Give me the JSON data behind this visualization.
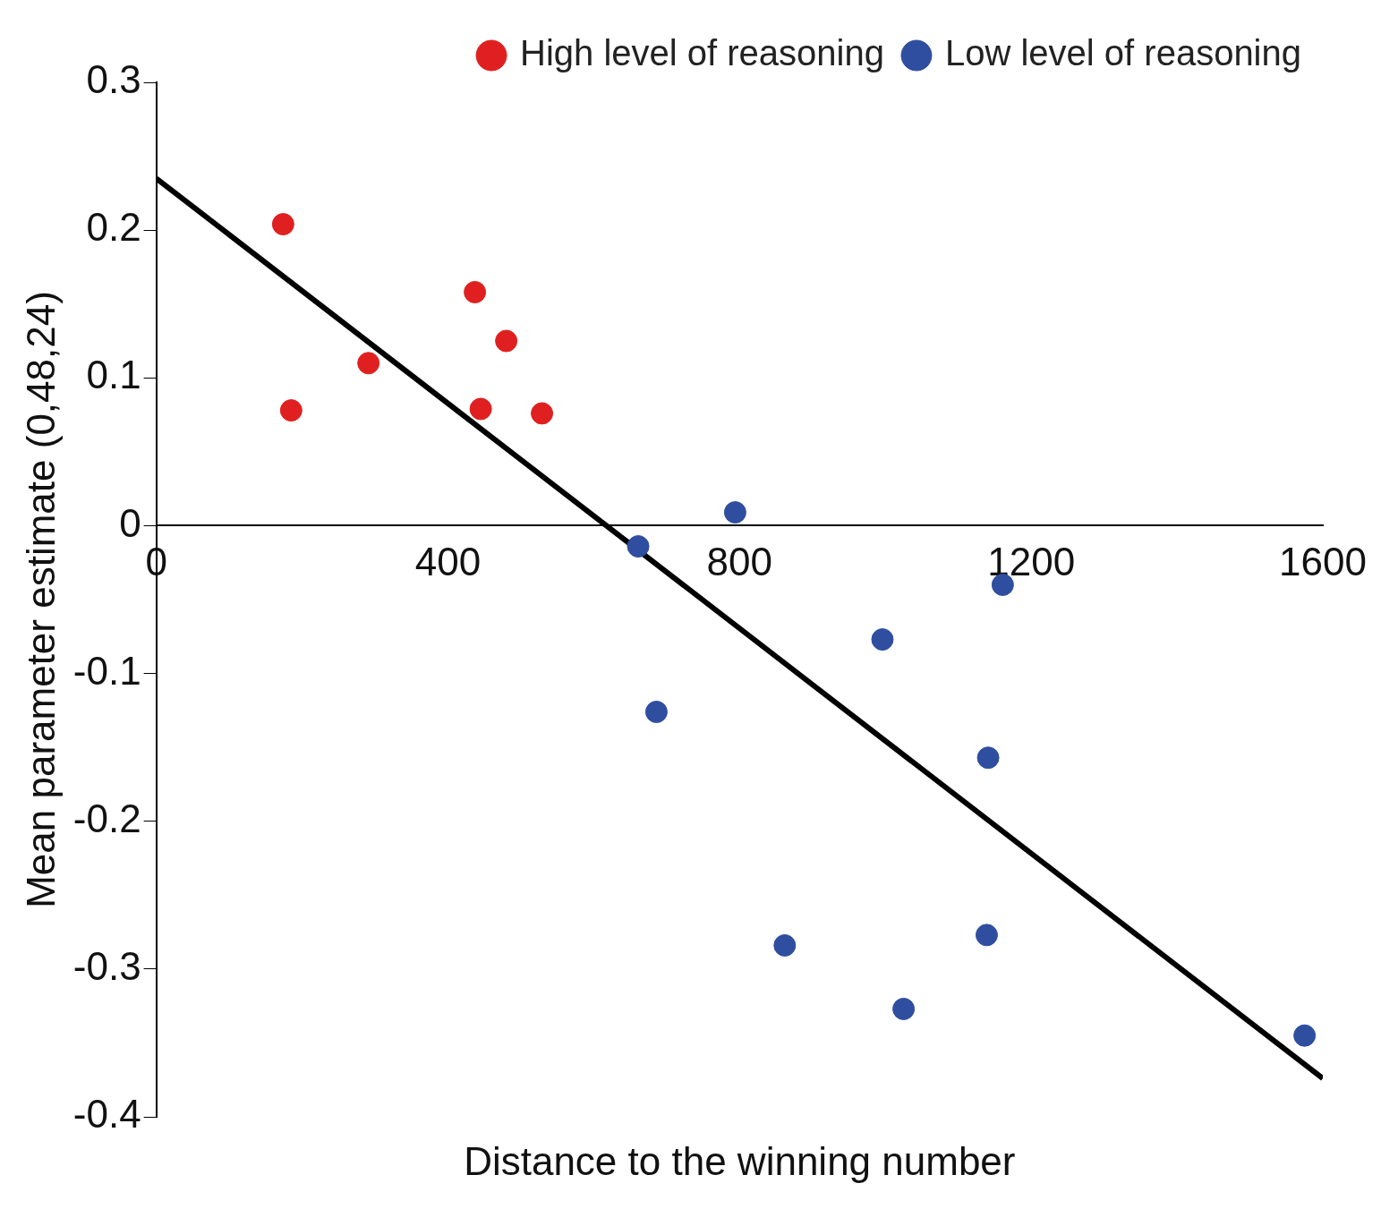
{
  "chart_data": {
    "type": "scatter",
    "xlabel": "Distance to the winning number",
    "ylabel": "Mean parameter estimate (0,48,24)",
    "xlim": [
      0,
      1600
    ],
    "xticks": [
      0,
      400,
      800,
      1200,
      1600
    ],
    "ylim": [
      -0.4,
      0.3
    ],
    "yticks": [
      -0.4,
      -0.3,
      -0.2,
      -0.1,
      0,
      0.1,
      0.2,
      0.3
    ],
    "grid": false,
    "legend": "top right",
    "marker": "circle",
    "series": [
      {
        "name": "High level of reasoning",
        "color": "#e02020",
        "x": [
          174,
          185,
          291,
          437,
          480,
          445,
          529
        ],
        "values": [
          0.204,
          0.078,
          0.11,
          0.158,
          0.125,
          0.079,
          0.076
        ]
      },
      {
        "name": "Low level of reasoning",
        "color": "#2f4ea0",
        "x": [
          794,
          661,
          686,
          1161,
          996,
          1141,
          862,
          1139,
          1025,
          1575
        ],
        "values": [
          0.009,
          -0.014,
          -0.126,
          -0.04,
          -0.077,
          -0.157,
          -0.284,
          -0.277,
          -0.327,
          -0.345
        ]
      },
      {
        "type": "line",
        "marker": "none",
        "color": "#000000",
        "x": [
          0,
          1600
        ],
        "values": [
          0.235,
          -0.374
        ]
      }
    ]
  }
}
